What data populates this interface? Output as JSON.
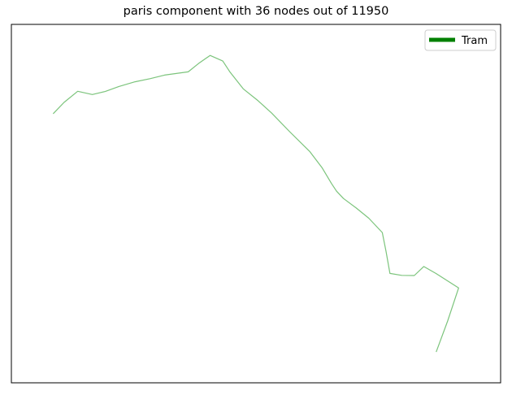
{
  "chart_data": {
    "type": "line",
    "title": "paris component with 36 nodes out of 11950",
    "axes_visible": false,
    "grid": false,
    "legend_placement": "top-right",
    "legend": [
      {
        "label": "Tram",
        "color": "#008000"
      }
    ],
    "series": [
      {
        "color": "#7cc47c",
        "points": [
          [
            65.4,
            139.9
          ],
          [
            78.8,
            126.0
          ],
          [
            95.6,
            112.3
          ],
          [
            113.6,
            116.3
          ],
          [
            129.4,
            112.6
          ],
          [
            146.3,
            106.4
          ],
          [
            166.2,
            100.6
          ],
          [
            184.6,
            96.8
          ],
          [
            202.4,
            92.4
          ],
          [
            231.6,
            88.4
          ],
          [
            244.1,
            78.3
          ],
          [
            258.5,
            68.2
          ],
          [
            274.1,
            75.1
          ],
          [
            282.6,
            88.1
          ],
          [
            299.3,
            109.3
          ],
          [
            317.5,
            123.9
          ],
          [
            334.2,
            139.1
          ],
          [
            356.4,
            162.0
          ],
          [
            381.3,
            186.6
          ],
          [
            396.2,
            206.2
          ],
          [
            407.9,
            225.8
          ],
          [
            414.1,
            235.2
          ],
          [
            422.6,
            244.2
          ],
          [
            438.3,
            255.9
          ],
          [
            453.8,
            268.5
          ],
          [
            470.4,
            286.1
          ],
          [
            475.0,
            309.3
          ],
          [
            479.8,
            336.4
          ],
          [
            494.3,
            338.8
          ],
          [
            509.8,
            339.0
          ],
          [
            521.4,
            327.9
          ],
          [
            536.5,
            336.5
          ],
          [
            564.3,
            354.3
          ],
          [
            550.8,
            395.0
          ],
          [
            536.7,
            433.1
          ]
        ]
      }
    ]
  }
}
